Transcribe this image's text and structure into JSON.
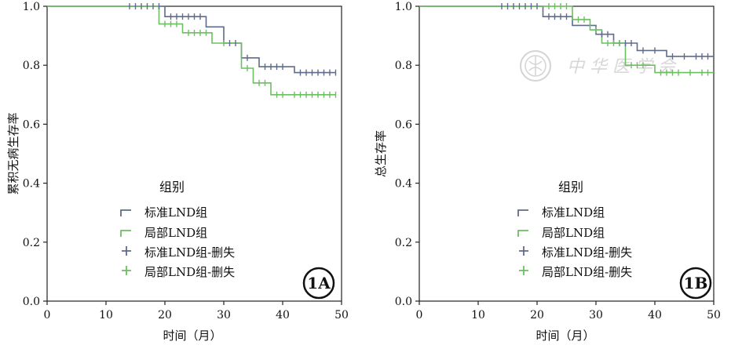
{
  "colors": {
    "standard": "#5f6b8c",
    "local": "#6cbf60",
    "axis": "#222222",
    "watermark": "#d4d4d4"
  },
  "watermark": {
    "text": "中 华 医 学 会",
    "icon": "medical-association-seal-icon"
  },
  "chart_data": [
    {
      "type": "line",
      "step": true,
      "panel_badge": "1A",
      "title": "",
      "xlabel": "时间（月）",
      "ylabel": "累积无病生存率",
      "xlim": [
        0,
        50
      ],
      "ylim": [
        0,
        1.0
      ],
      "x_ticks": [
        "0",
        "10",
        "20",
        "30",
        "40",
        "50"
      ],
      "y_ticks": [
        "0.0",
        "0.2",
        "0.4",
        "0.6",
        "0.8",
        "1.0"
      ],
      "grid": false,
      "legend": {
        "title": "组别",
        "position": "center",
        "entries": [
          "标准LND组",
          "局部LND组",
          "标准LND组-删失",
          "局部LND组-删失"
        ]
      },
      "series": [
        {
          "name": "标准LND组",
          "color_key": "standard",
          "points": [
            [
              0,
              1.0
            ],
            [
              20,
              1.0
            ],
            [
              20,
              0.965
            ],
            [
              27,
              0.965
            ],
            [
              27,
              0.93
            ],
            [
              30,
              0.93
            ],
            [
              30,
              0.875
            ],
            [
              33,
              0.875
            ],
            [
              33,
              0.825
            ],
            [
              36,
              0.825
            ],
            [
              36,
              0.795
            ],
            [
              42,
              0.795
            ],
            [
              42,
              0.775
            ],
            [
              49,
              0.775
            ]
          ],
          "censored": [
            [
              14,
              1.0
            ],
            [
              15,
              1.0
            ],
            [
              16,
              1.0
            ],
            [
              17,
              1.0
            ],
            [
              18,
              1.0
            ],
            [
              19,
              1.0
            ],
            [
              21,
              0.965
            ],
            [
              22,
              0.965
            ],
            [
              23,
              0.965
            ],
            [
              24,
              0.965
            ],
            [
              25,
              0.965
            ],
            [
              26,
              0.965
            ],
            [
              31,
              0.875
            ],
            [
              32,
              0.875
            ],
            [
              34,
              0.825
            ],
            [
              37,
              0.795
            ],
            [
              38,
              0.795
            ],
            [
              39,
              0.795
            ],
            [
              40,
              0.795
            ],
            [
              43,
              0.775
            ],
            [
              44,
              0.775
            ],
            [
              45,
              0.775
            ],
            [
              46,
              0.775
            ],
            [
              47,
              0.775
            ],
            [
              48,
              0.775
            ],
            [
              49,
              0.775
            ]
          ]
        },
        {
          "name": "局部LND组",
          "color_key": "local",
          "points": [
            [
              0,
              1.0
            ],
            [
              19,
              1.0
            ],
            [
              19,
              0.94
            ],
            [
              23,
              0.94
            ],
            [
              23,
              0.91
            ],
            [
              28,
              0.91
            ],
            [
              28,
              0.875
            ],
            [
              33,
              0.875
            ],
            [
              33,
              0.79
            ],
            [
              35,
              0.79
            ],
            [
              35,
              0.74
            ],
            [
              38,
              0.74
            ],
            [
              38,
              0.7
            ],
            [
              49,
              0.7
            ]
          ],
          "censored": [
            [
              20,
              0.94
            ],
            [
              21,
              0.94
            ],
            [
              22,
              0.94
            ],
            [
              24,
              0.91
            ],
            [
              25,
              0.91
            ],
            [
              26,
              0.91
            ],
            [
              27,
              0.91
            ],
            [
              30,
              0.875
            ],
            [
              34,
              0.79
            ],
            [
              36,
              0.74
            ],
            [
              37,
              0.74
            ],
            [
              39,
              0.7
            ],
            [
              40,
              0.7
            ],
            [
              42,
              0.7
            ],
            [
              43,
              0.7
            ],
            [
              44,
              0.7
            ],
            [
              45,
              0.7
            ],
            [
              46,
              0.7
            ],
            [
              47,
              0.7
            ],
            [
              48,
              0.7
            ],
            [
              49,
              0.7
            ]
          ]
        }
      ]
    },
    {
      "type": "line",
      "step": true,
      "panel_badge": "1B",
      "title": "",
      "xlabel": "时间（月）",
      "ylabel": "总生存率",
      "xlim": [
        0,
        50
      ],
      "ylim": [
        0,
        1.0
      ],
      "x_ticks": [
        "0",
        "10",
        "20",
        "30",
        "40",
        "50"
      ],
      "y_ticks": [
        "0.0",
        "0.2",
        "0.4",
        "0.6",
        "0.8",
        "1.0"
      ],
      "grid": false,
      "legend": {
        "title": "组别",
        "position": "center",
        "entries": [
          "标准LND组",
          "局部LND组",
          "标准LND组-删失",
          "局部LND组-删失"
        ]
      },
      "series": [
        {
          "name": "标准LND组",
          "color_key": "standard",
          "points": [
            [
              0,
              1.0
            ],
            [
              21,
              1.0
            ],
            [
              21,
              0.965
            ],
            [
              26,
              0.965
            ],
            [
              26,
              0.935
            ],
            [
              30,
              0.935
            ],
            [
              30,
              0.905
            ],
            [
              33,
              0.905
            ],
            [
              33,
              0.875
            ],
            [
              37,
              0.875
            ],
            [
              37,
              0.85
            ],
            [
              42,
              0.85
            ],
            [
              42,
              0.83
            ],
            [
              50,
              0.83
            ]
          ],
          "censored": [
            [
              14,
              1.0
            ],
            [
              15,
              1.0
            ],
            [
              16,
              1.0
            ],
            [
              17,
              1.0
            ],
            [
              18,
              1.0
            ],
            [
              19,
              1.0
            ],
            [
              20,
              1.0
            ],
            [
              22,
              0.965
            ],
            [
              23,
              0.965
            ],
            [
              24,
              0.965
            ],
            [
              25,
              0.965
            ],
            [
              31,
              0.905
            ],
            [
              32,
              0.905
            ],
            [
              34,
              0.875
            ],
            [
              35,
              0.875
            ],
            [
              36,
              0.875
            ],
            [
              38,
              0.85
            ],
            [
              40,
              0.85
            ],
            [
              43,
              0.83
            ],
            [
              45,
              0.83
            ],
            [
              47,
              0.83
            ],
            [
              48,
              0.83
            ],
            [
              49,
              0.83
            ]
          ]
        },
        {
          "name": "局部LND组",
          "color_key": "local",
          "points": [
            [
              0,
              1.0
            ],
            [
              26,
              1.0
            ],
            [
              26,
              0.955
            ],
            [
              29,
              0.955
            ],
            [
              29,
              0.92
            ],
            [
              31,
              0.92
            ],
            [
              31,
              0.875
            ],
            [
              35,
              0.875
            ],
            [
              35,
              0.8
            ],
            [
              40,
              0.8
            ],
            [
              40,
              0.775
            ],
            [
              50,
              0.775
            ]
          ],
          "censored": [
            [
              22,
              1.0
            ],
            [
              23,
              1.0
            ],
            [
              24,
              1.0
            ],
            [
              25,
              1.0
            ],
            [
              27,
              0.955
            ],
            [
              28,
              0.955
            ],
            [
              30,
              0.92
            ],
            [
              32,
              0.875
            ],
            [
              33,
              0.875
            ],
            [
              34,
              0.875
            ],
            [
              36,
              0.8
            ],
            [
              37,
              0.8
            ],
            [
              38,
              0.8
            ],
            [
              41,
              0.775
            ],
            [
              42,
              0.775
            ],
            [
              43,
              0.775
            ],
            [
              44,
              0.775
            ],
            [
              46,
              0.775
            ],
            [
              48,
              0.775
            ],
            [
              49,
              0.775
            ]
          ]
        }
      ]
    }
  ]
}
